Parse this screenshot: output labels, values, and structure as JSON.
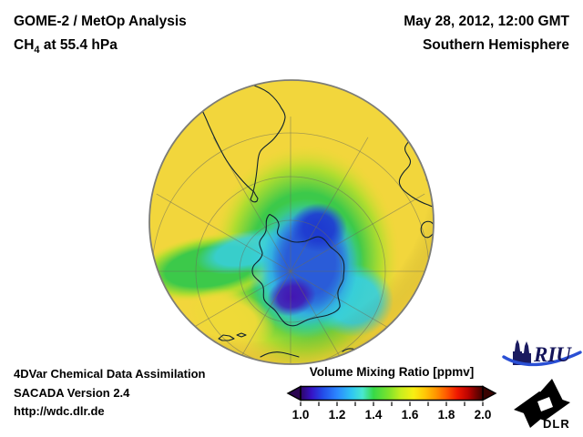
{
  "header": {
    "title_line1": "GOME-2 / MetOp Analysis",
    "species": "CH",
    "species_sub": "4",
    "level_suffix": " at 55.4 hPa",
    "date_line": "May 28, 2012, 12:00 GMT",
    "region_line": "Southern Hemisphere"
  },
  "footer": {
    "line1": "4DVar Chemical Data Assimilation",
    "line2": "SACADA Version 2.4",
    "line3": "http://wdc.dlr.de"
  },
  "colorbar": {
    "title": "Volume Mixing Ratio [ppmv]",
    "tick_labels": [
      "1.0",
      "1.2",
      "1.4",
      "1.6",
      "1.8",
      "2.0"
    ]
  },
  "logos": {
    "riu": "RIU",
    "dlr": "DLR"
  },
  "chart_data": {
    "type": "heatmap",
    "title": "GOME-2 / MetOp Analysis, CH4 at 55.4 hPa",
    "datetime": "May 28, 2012, 12:00 GMT",
    "region": "Southern Hemisphere",
    "projection": "orthographic, south polar view",
    "colorbar": {
      "label": "Volume Mixing Ratio [ppmv]",
      "range": [
        1.0,
        2.0
      ],
      "ticks": [
        1.0,
        1.2,
        1.4,
        1.6,
        1.8,
        2.0
      ],
      "minor_tick_step": 0.1,
      "left_arrow_color": "#2a0550",
      "right_arrow_color": "#380200",
      "colormap_stops": [
        {
          "value": 1.0,
          "color": "#2d0566"
        },
        {
          "value": 1.06,
          "color": "#3613c6"
        },
        {
          "value": 1.12,
          "color": "#234ae8"
        },
        {
          "value": 1.2,
          "color": "#2b87ff"
        },
        {
          "value": 1.28,
          "color": "#2fc6f2"
        },
        {
          "value": 1.34,
          "color": "#49e8cf"
        },
        {
          "value": 1.4,
          "color": "#37d948"
        },
        {
          "value": 1.48,
          "color": "#7ae22c"
        },
        {
          "value": 1.55,
          "color": "#c8ee1e"
        },
        {
          "value": 1.62,
          "color": "#f8ef13"
        },
        {
          "value": 1.68,
          "color": "#ffc907"
        },
        {
          "value": 1.74,
          "color": "#ff9800"
        },
        {
          "value": 1.8,
          "color": "#ff5a00"
        },
        {
          "value": 1.86,
          "color": "#f01800"
        },
        {
          "value": 1.92,
          "color": "#bb0300"
        },
        {
          "value": 1.96,
          "color": "#7a0200"
        },
        {
          "value": 2.0,
          "color": "#400200"
        }
      ]
    },
    "field_summary": {
      "midlatitude_value_ppmv": 1.6,
      "transition_ring_value_ppmv": 1.45,
      "polar_vortex_value_ppmv": 1.2,
      "vortex_core_min_ppmv": 1.05,
      "description": "Yellow mid-latitudes (~1.6 ppmv) surround a green transition ring (~1.4-1.5 ppmv); a blue polar vortex of low CH4 (~1.1-1.3 ppmv) sits over Antarctica with a dark violet minimum (~1.0-1.1 ppmv) near the pole; a green-cyan arm extends west toward the globe rim."
    }
  }
}
